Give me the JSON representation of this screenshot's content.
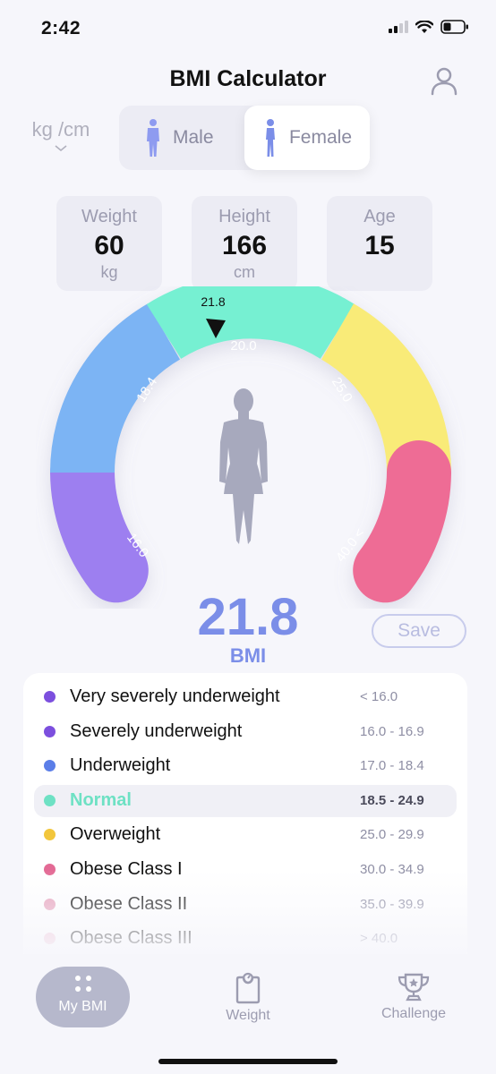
{
  "status": {
    "time": "2:42"
  },
  "header": {
    "title": "BMI Calculator"
  },
  "unit_select": {
    "value": "kg /cm"
  },
  "gender": {
    "male_label": "Male",
    "female_label": "Female",
    "selected": "Female"
  },
  "stats": [
    {
      "label": "Weight",
      "value": "60",
      "unit": "kg"
    },
    {
      "label": "Height",
      "value": "166",
      "unit": "cm"
    },
    {
      "label": "Age",
      "value": "15",
      "unit": ""
    }
  ],
  "gauge": {
    "pointer_value": "21.8",
    "ticks": [
      "16.0",
      "18.4",
      "20.0",
      "25.0",
      "40.0 <"
    ],
    "colors": {
      "purple": "#9d7ff0",
      "blue": "#7cb4f4",
      "green": "#76f0d2",
      "yellow": "#f9eb78",
      "pink": "#ee6c95"
    }
  },
  "result": {
    "bmi": "21.8",
    "label": "BMI",
    "save_label": "Save"
  },
  "categories": [
    {
      "name": "Very severely underweight",
      "range": "< 16.0",
      "color": "#7c4fde"
    },
    {
      "name": "Severely underweight",
      "range": "16.0 - 16.9",
      "color": "#7c4fde"
    },
    {
      "name": "Underweight",
      "range": "17.0 - 18.4",
      "color": "#5b7ee8"
    },
    {
      "name": "Normal",
      "range": "18.5 - 24.9",
      "color": "#6ee1c4"
    },
    {
      "name": "Overweight",
      "range": "25.0 - 29.9",
      "color": "#f2c63c"
    },
    {
      "name": "Obese Class I",
      "range": "30.0 - 34.9",
      "color": "#e36a95"
    },
    {
      "name": "Obese Class II",
      "range": "35.0 - 39.9",
      "color": "#e8a3bd"
    },
    {
      "name": "Obese Class III",
      "range": "> 40.0",
      "color": "#f2c4d6"
    }
  ],
  "tabs": [
    {
      "label": "My BMI"
    },
    {
      "label": "Weight"
    },
    {
      "label": "Challenge"
    }
  ]
}
